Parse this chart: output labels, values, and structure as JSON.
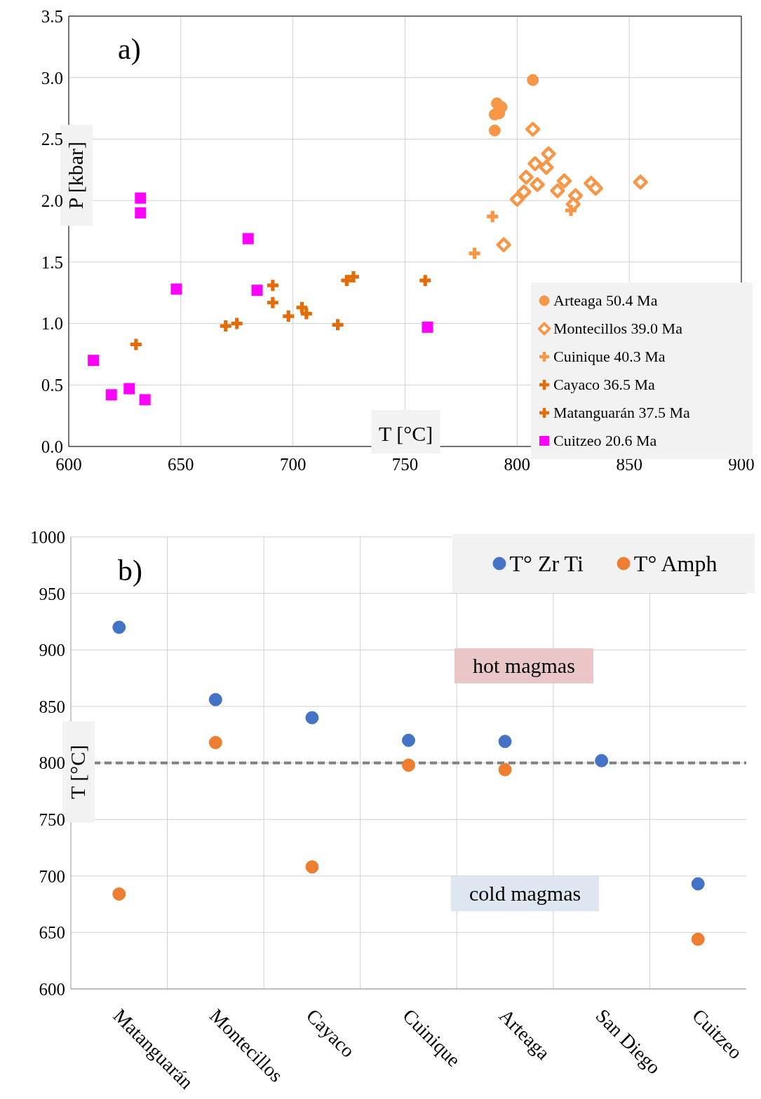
{
  "chart_data": [
    {
      "type": "scatter",
      "title": "a)",
      "xlabel": "T [°C]",
      "ylabel": "P [kbar]",
      "xlim": [
        600,
        900
      ],
      "xticks": [
        600,
        650,
        700,
        750,
        800,
        850,
        900
      ],
      "ylim": [
        0,
        3.5
      ],
      "yticks": [
        {
          "value": 0,
          "label": "0.0"
        },
        {
          "value": 0.5,
          "label": "0.5"
        },
        {
          "value": 1,
          "label": "1.0"
        },
        {
          "value": 1.5,
          "label": "1.5"
        },
        {
          "value": 2,
          "label": "2.0"
        },
        {
          "value": 2.5,
          "label": "2.5"
        },
        {
          "value": 3,
          "label": "3.0"
        },
        {
          "value": 3.5,
          "label": "3.5"
        }
      ],
      "grid": true,
      "legend": "bottom right",
      "series": [
        {
          "name": "Arteaga 50.4 Ma",
          "color": "#f79646",
          "marker": "circle",
          "x": [
            807,
            791,
            793,
            790,
            792,
            790
          ],
          "values": [
            2.98,
            2.79,
            2.76,
            2.7,
            2.71,
            2.57
          ]
        },
        {
          "name": "Montecillos 39.0 Ma",
          "color": "#f79646",
          "marker": "diamond",
          "x": [
            807,
            814,
            808,
            813,
            804,
            809,
            821,
            818,
            803,
            800,
            826,
            825,
            833,
            835,
            855,
            794
          ],
          "values": [
            2.58,
            2.38,
            2.3,
            2.27,
            2.19,
            2.13,
            2.16,
            2.08,
            2.07,
            2.01,
            2.04,
            1.97,
            2.14,
            2.1,
            2.15,
            1.64
          ]
        },
        {
          "name": "Cuinique 40.3 Ma",
          "color": "#f79646",
          "marker": "cross",
          "x": [
            789,
            781,
            824
          ],
          "values": [
            1.87,
            1.57,
            1.92
          ]
        },
        {
          "name": "Cayaco 36.5 Ma",
          "color": "#e36c0a",
          "marker": "cross",
          "x": [
            691,
            691,
            698,
            704,
            706,
            720,
            724,
            727
          ],
          "values": [
            1.31,
            1.17,
            1.06,
            1.13,
            1.08,
            0.99,
            1.35,
            1.38
          ]
        },
        {
          "name": "Matanguarán 37.5 Ma",
          "color": "#e36c0a",
          "marker": "cross",
          "x": [
            630,
            670,
            675,
            759
          ],
          "values": [
            0.83,
            0.98,
            1.0,
            1.35
          ]
        },
        {
          "name": "Cuitzeo 20.6 Ma",
          "color": "#ff00ff",
          "marker": "square",
          "x": [
            632,
            632,
            680,
            648,
            684,
            760,
            611,
            619,
            627,
            634
          ],
          "values": [
            2.02,
            1.9,
            1.69,
            1.28,
            1.27,
            0.97,
            0.7,
            0.42,
            0.47,
            0.38
          ]
        }
      ]
    },
    {
      "type": "scatter",
      "title": "b)",
      "ylabel": "T [°C]",
      "categories": [
        "Matanguarán",
        "Montecillos",
        "Cayaco",
        "Cuinique",
        "Arteaga",
        "San Diego",
        "Cuitzeo"
      ],
      "ylim": [
        600,
        1000
      ],
      "yticks": [
        600,
        650,
        700,
        750,
        800,
        850,
        900,
        950,
        1000
      ],
      "grid": true,
      "legend": "top right",
      "marker": "circle",
      "series": [
        {
          "name": "T° Zr Ti",
          "color": "#4472c4",
          "values": [
            920,
            856,
            840,
            820,
            819,
            802,
            693
          ]
        },
        {
          "name": "T° Amph",
          "color": "#ed7d31",
          "values": [
            684,
            818,
            708,
            798,
            794,
            null,
            644
          ]
        }
      ],
      "ref_lines": [
        {
          "axis": "y",
          "value": 800,
          "color": "#808080",
          "line_style": "dashed"
        }
      ],
      "annotations": [
        "hot magmas",
        "cold magmas"
      ]
    }
  ]
}
